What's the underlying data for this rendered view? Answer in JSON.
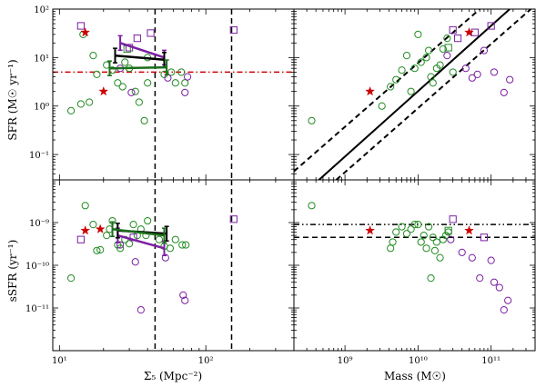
{
  "chart_data": [
    {
      "type": "scatter",
      "panel": "top-left",
      "xscale": "log",
      "yscale": "log",
      "xlim": [
        9,
        400
      ],
      "ylim": [
        0.03,
        100
      ],
      "xlabel": "",
      "ylabel": "SFR (M☉ yr⁻¹)",
      "yticks": [
        {
          "v": 0.1,
          "label": "10⁻¹"
        },
        {
          "v": 1,
          "label": "10⁰"
        },
        {
          "v": 10,
          "label": "10¹"
        },
        {
          "v": 100,
          "label": "10²"
        }
      ],
      "xticks": [],
      "vlines": [
        {
          "x": 45,
          "style": "dashed",
          "color": "#000000"
        },
        {
          "x": 150,
          "style": "dashed",
          "color": "#000000"
        }
      ],
      "hlines": [
        {
          "y": 5,
          "style": "dashdot",
          "color": "#cc0000"
        }
      ],
      "series": [
        {
          "marker": "circle",
          "color": "#228b22",
          "points": [
            [
              14.5,
              30
            ],
            [
              17,
              11
            ],
            [
              18,
              4.5
            ],
            [
              21,
              7
            ],
            [
              23,
              5.5
            ],
            [
              25,
              3
            ],
            [
              27,
              2.5
            ],
            [
              28,
              8
            ],
            [
              30,
              6
            ],
            [
              33,
              2
            ],
            [
              35,
              1.2
            ],
            [
              38,
              0.5
            ],
            [
              40,
              3
            ],
            [
              12,
              0.8
            ],
            [
              14,
              1.1
            ],
            [
              16,
              1.2
            ],
            [
              40,
              10
            ],
            [
              52,
              4.5
            ],
            [
              58,
              5
            ],
            [
              62,
              3
            ],
            [
              68,
              5
            ],
            [
              72,
              3
            ]
          ]
        },
        {
          "marker": "circle",
          "color": "#7a1fa2",
          "points": [
            [
              26,
              6
            ],
            [
              31,
              1.9
            ],
            [
              55,
              3.8
            ],
            [
              72,
              1.9
            ],
            [
              75,
              4
            ]
          ]
        },
        {
          "marker": "square",
          "color": "#7a1fa2",
          "points": [
            [
              14,
              45
            ],
            [
              30,
              16
            ],
            [
              34,
              25
            ],
            [
              42,
              32
            ],
            [
              155,
              37
            ]
          ]
        },
        {
          "marker": "square",
          "color": "#228b22",
          "points": [
            [
              29,
              15
            ]
          ]
        },
        {
          "marker": "star",
          "color": "#cc0000",
          "points": [
            [
              15,
              33
            ],
            [
              20,
              2
            ]
          ]
        }
      ],
      "segments": [
        {
          "color": "#7a1fa2",
          "points": [
            [
              26,
              20
            ],
            [
              52,
              10
            ]
          ],
          "errbars": true
        },
        {
          "color": "#000000",
          "points": [
            [
              24,
              11
            ],
            [
              52,
              9
            ]
          ],
          "errbars": true
        },
        {
          "color": "#1a6e1a",
          "points": [
            [
              22,
              6
            ],
            [
              54,
              6.3
            ]
          ],
          "errbars": true
        }
      ]
    },
    {
      "type": "scatter",
      "panel": "top-right",
      "xscale": "log",
      "yscale": "log",
      "xlim": [
        200000000,
        400000000000
      ],
      "ylim": [
        0.03,
        100
      ],
      "xlabel": "",
      "ylabel": "",
      "xticks": [],
      "yticks": [],
      "lines": [
        {
          "style": "solid",
          "color": "#000000",
          "points": [
            [
              440000000,
              0.03
            ],
            [
              180000000000,
              100
            ]
          ]
        },
        {
          "style": "dashed",
          "color": "#000000",
          "points": [
            [
              200000000,
              0.045
            ],
            [
              70000000000,
              100
            ]
          ]
        },
        {
          "style": "dashed",
          "color": "#000000",
          "points": [
            [
              760000000,
              0.03
            ],
            [
              350000000000,
              100
            ]
          ]
        }
      ],
      "series": [
        {
          "marker": "circle",
          "color": "#228b22",
          "points": [
            [
              350000000,
              0.5
            ],
            [
              3200000000,
              1
            ],
            [
              4200000000,
              2.5
            ],
            [
              5000000000,
              3.5
            ],
            [
              6000000000,
              5.5
            ],
            [
              7000000000,
              11
            ],
            [
              8000000000,
              2
            ],
            [
              9000000000,
              6
            ],
            [
              10000000000,
              30
            ],
            [
              11000000000,
              8
            ],
            [
              13000000000,
              10
            ],
            [
              14000000000,
              14
            ],
            [
              15000000000,
              4
            ],
            [
              16000000000,
              3
            ],
            [
              18000000000,
              6
            ],
            [
              20000000000,
              7
            ],
            [
              22000000000,
              15
            ],
            [
              25000000000,
              25
            ],
            [
              30000000000,
              5
            ]
          ]
        },
        {
          "marker": "circle",
          "color": "#7a1fa2",
          "points": [
            [
              25000000000,
              11
            ],
            [
              45000000000,
              6
            ],
            [
              55000000000,
              3.8
            ],
            [
              65000000000,
              4.5
            ],
            [
              80000000000,
              14
            ],
            [
              110000000000,
              5
            ],
            [
              150000000000,
              1.9
            ],
            [
              180000000000,
              3.5
            ]
          ]
        },
        {
          "marker": "square",
          "color": "#7a1fa2",
          "points": [
            [
              30000000000,
              37
            ],
            [
              35000000000,
              25
            ],
            [
              60000000000,
              33
            ],
            [
              100000000000,
              45
            ]
          ]
        },
        {
          "marker": "square",
          "color": "#228b22",
          "points": [
            [
              26000000000,
              16
            ]
          ]
        },
        {
          "marker": "star",
          "color": "#cc0000",
          "points": [
            [
              2200000000,
              2
            ],
            [
              50000000000,
              33
            ]
          ]
        }
      ]
    },
    {
      "type": "scatter",
      "panel": "bottom-left",
      "xscale": "log",
      "yscale": "log",
      "xlim": [
        9,
        400
      ],
      "ylim": [
        1e-12,
        1e-08
      ],
      "xlabel": "Σ₅ (Mpc⁻²)",
      "ylabel": "sSFR (yr⁻¹)",
      "xticks": [
        {
          "v": 10,
          "label": "10¹"
        },
        {
          "v": 100,
          "label": "10²"
        }
      ],
      "yticks": [
        {
          "v": 1e-11,
          "label": "10⁻¹¹"
        },
        {
          "v": 1e-10,
          "label": "10⁻¹⁰"
        },
        {
          "v": 1e-09,
          "label": "10⁻⁹"
        }
      ],
      "vlines": [
        {
          "x": 45,
          "style": "dashed",
          "color": "#000000"
        },
        {
          "x": 150,
          "style": "dashed",
          "color": "#000000"
        }
      ],
      "series": [
        {
          "marker": "circle",
          "color": "#228b22",
          "points": [
            [
              15,
              2.5e-09
            ],
            [
              17,
              9e-10
            ],
            [
              18,
              2.2e-10
            ],
            [
              19,
              2.3e-10
            ],
            [
              21,
              5e-10
            ],
            [
              22,
              7e-10
            ],
            [
              23,
              1.1e-09
            ],
            [
              25,
              3e-10
            ],
            [
              26,
              2.5e-10
            ],
            [
              28,
              4e-10
            ],
            [
              30,
              3.2e-10
            ],
            [
              32,
              9e-10
            ],
            [
              34,
              5e-10
            ],
            [
              36,
              7e-10
            ],
            [
              39,
              5e-10
            ],
            [
              12,
              5e-11
            ],
            [
              40,
              1.1e-09
            ],
            [
              48,
              4e-10
            ],
            [
              52,
              2.8e-10
            ],
            [
              57,
              2.5e-10
            ],
            [
              62,
              4e-10
            ],
            [
              69,
              3e-10
            ],
            [
              73,
              3e-10
            ]
          ]
        },
        {
          "marker": "circle",
          "color": "#7a1fa2",
          "points": [
            [
              26,
              3e-10
            ],
            [
              33,
              1.2e-10
            ],
            [
              53,
              1.5e-10
            ],
            [
              36,
              9e-12
            ],
            [
              70,
              2e-11
            ],
            [
              72,
              1.5e-11
            ]
          ]
        },
        {
          "marker": "square",
          "color": "#7a1fa2",
          "points": [
            [
              14,
              4e-10
            ],
            [
              32,
              4.5e-10
            ],
            [
              155,
              1.2e-09
            ]
          ]
        },
        {
          "marker": "star",
          "color": "#cc0000",
          "points": [
            [
              15,
              6.5e-10
            ],
            [
              19,
              7e-10
            ]
          ]
        }
      ],
      "segments": [
        {
          "color": "#7a1fa2",
          "points": [
            [
              25,
              5e-10
            ],
            [
              52,
              2.5e-10
            ]
          ],
          "errbars": true
        },
        {
          "color": "#000000",
          "points": [
            [
              25,
              6.5e-10
            ],
            [
              54,
              5.5e-10
            ]
          ],
          "errbars": true
        },
        {
          "color": "#1a6e1a",
          "points": [
            [
              23,
              7e-10
            ],
            [
              52,
              5e-10
            ]
          ],
          "errbars": true
        }
      ]
    },
    {
      "type": "scatter",
      "panel": "bottom-right",
      "xscale": "log",
      "yscale": "log",
      "xlim": [
        200000000,
        400000000000
      ],
      "ylim": [
        1e-12,
        1e-08
      ],
      "xlabel": "Mass (M☉)",
      "ylabel": "",
      "xticks": [
        {
          "v": 1000000000,
          "label": "10⁹"
        },
        {
          "v": 10000000000,
          "label": "10¹⁰"
        },
        {
          "v": 100000000000,
          "label": "10¹¹"
        }
      ],
      "yticks": [],
      "hlines": [
        {
          "y": 9e-10,
          "style": "dashdotdot",
          "color": "#000000"
        },
        {
          "y": 4.5e-10,
          "style": "dashed",
          "color": "#000000"
        }
      ],
      "series": [
        {
          "marker": "circle",
          "color": "#228b22",
          "points": [
            [
              350000000,
              2.5e-09
            ],
            [
              4200000000,
              2.5e-10
            ],
            [
              4500000000,
              3.5e-10
            ],
            [
              5000000000,
              6e-10
            ],
            [
              6000000000,
              8e-10
            ],
            [
              7000000000,
              5.5e-10
            ],
            [
              8000000000,
              7e-10
            ],
            [
              9000000000,
              9e-10
            ],
            [
              10000000000,
              9e-10
            ],
            [
              11000000000,
              3.5e-10
            ],
            [
              12000000000,
              5e-10
            ],
            [
              13000000000,
              2.5e-10
            ],
            [
              14000000000,
              8e-10
            ],
            [
              15000000000,
              5e-11
            ],
            [
              16000000000,
              4.5e-10
            ],
            [
              17000000000,
              2.2e-10
            ],
            [
              18000000000,
              3.5e-10
            ],
            [
              20000000000,
              1.5e-10
            ],
            [
              22000000000,
              4e-10
            ],
            [
              24000000000,
              5e-10
            ],
            [
              26000000000,
              6e-10
            ]
          ]
        },
        {
          "marker": "circle",
          "color": "#7a1fa2",
          "points": [
            [
              28000000000,
              4e-10
            ],
            [
              40000000000,
              2e-10
            ],
            [
              55000000000,
              1.5e-10
            ],
            [
              70000000000,
              5e-11
            ],
            [
              100000000000,
              1.3e-10
            ],
            [
              110000000000,
              4e-11
            ],
            [
              130000000000,
              3e-11
            ],
            [
              150000000000,
              9e-12
            ],
            [
              170000000000,
              1.5e-11
            ]
          ]
        },
        {
          "marker": "square",
          "color": "#7a1fa2",
          "points": [
            [
              30000000000,
              1.2e-09
            ],
            [
              80000000000,
              4.5e-10
            ]
          ]
        },
        {
          "marker": "square",
          "color": "#228b22",
          "points": [
            [
              26000000000,
              6.5e-10
            ]
          ]
        },
        {
          "marker": "star",
          "color": "#cc0000",
          "points": [
            [
              2200000000,
              6.5e-10
            ],
            [
              50000000000,
              6.5e-10
            ]
          ]
        }
      ]
    }
  ]
}
